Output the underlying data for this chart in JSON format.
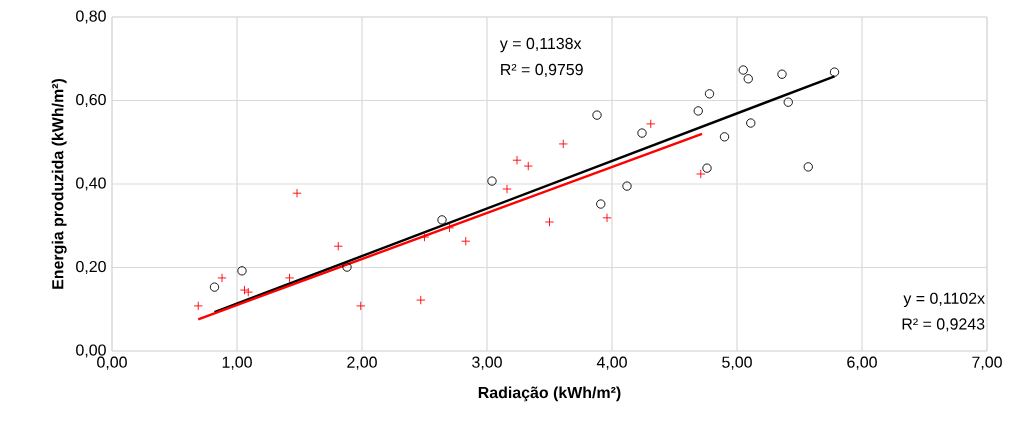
{
  "chart_data": {
    "type": "scatter",
    "xlabel": "Radiação (kWh/m²)",
    "ylabel": "Energia produzida (kWh/m²)",
    "xlim": [
      0,
      7
    ],
    "ylim": [
      0,
      0.8
    ],
    "xticks": [
      {
        "value": 0,
        "label": "0,00"
      },
      {
        "value": 1,
        "label": "1,00"
      },
      {
        "value": 2,
        "label": "2,00"
      },
      {
        "value": 3,
        "label": "3,00"
      },
      {
        "value": 4,
        "label": "4,00"
      },
      {
        "value": 5,
        "label": "5,00"
      },
      {
        "value": 6,
        "label": "6,00"
      },
      {
        "value": 7,
        "label": "7,00"
      }
    ],
    "yticks": [
      {
        "value": 0,
        "label": "0,00"
      },
      {
        "value": 0.2,
        "label": "0,20"
      },
      {
        "value": 0.4,
        "label": "0,40"
      },
      {
        "value": 0.6,
        "label": "0,60"
      },
      {
        "value": 0.8,
        "label": "0,80"
      }
    ],
    "grid": true,
    "series": [
      {
        "color": "#ff0000",
        "marker": "cross",
        "x": [
          0.69,
          0.88,
          1.06,
          1.09,
          1.42,
          1.48,
          1.81,
          1.99,
          2.47,
          2.5,
          2.7,
          2.83,
          3.16,
          3.24,
          3.33,
          3.5,
          3.61,
          3.96,
          4.31,
          4.71
        ],
        "values": [
          0.108,
          0.175,
          0.146,
          0.141,
          0.175,
          0.378,
          0.251,
          0.108,
          0.122,
          0.273,
          0.295,
          0.263,
          0.388,
          0.457,
          0.443,
          0.309,
          0.496,
          0.319,
          0.544,
          0.424
        ]
      },
      {
        "color": "#000000",
        "marker": "circle",
        "x": [
          0.82,
          1.04,
          1.88,
          2.64,
          3.04,
          3.88,
          3.91,
          4.12,
          4.24,
          4.69,
          4.76,
          4.78,
          4.9,
          5.05,
          5.09,
          5.11,
          5.36,
          5.41,
          5.57,
          5.78
        ],
        "values": [
          0.153,
          0.192,
          0.201,
          0.314,
          0.407,
          0.565,
          0.352,
          0.395,
          0.522,
          0.575,
          0.438,
          0.616,
          0.513,
          0.673,
          0.652,
          0.546,
          0.663,
          0.596,
          0.441,
          0.668
        ]
      },
      {
        "type": "line",
        "color": "#000000",
        "marker": "none",
        "line_style": "solid",
        "x": [
          0.82,
          5.78
        ],
        "values": [
          0.093,
          0.658
        ]
      },
      {
        "type": "line",
        "color": "#ff0000",
        "marker": "none",
        "line_style": "solid",
        "x": [
          0.69,
          4.72
        ],
        "values": [
          0.076,
          0.52
        ]
      }
    ],
    "annotations": [
      "y = 0,1138x",
      "R² = 0,9759",
      "y = 0,1102x",
      "R² = 0,9243"
    ]
  }
}
